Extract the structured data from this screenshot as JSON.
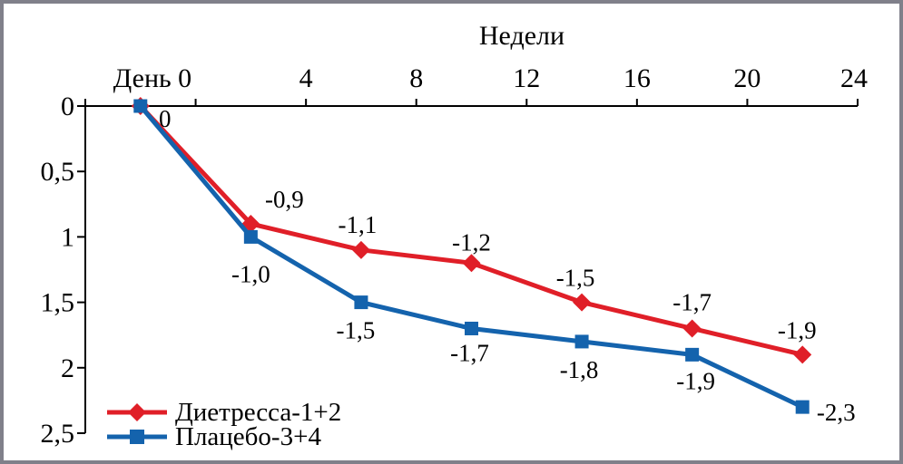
{
  "window": {
    "background_color": "#ffffff",
    "frame_border_color": "#80808a"
  },
  "chart_data": {
    "type": "line",
    "title": "Недели",
    "x_axis": {
      "day0_label": "День 0",
      "tick_labels": [
        "4",
        "8",
        "12",
        "16",
        "20",
        "24"
      ],
      "position": "top"
    },
    "y_axis": {
      "tick_labels": [
        "0",
        "0,5",
        "1",
        "1,5",
        "2",
        "2,5"
      ],
      "min": 0,
      "max": 2.5,
      "direction": "inverted-downward"
    },
    "categories": [
      "День 0",
      "4",
      "8",
      "12",
      "16",
      "20",
      "24"
    ],
    "grid": "off",
    "legend_position": "bottom-left",
    "series": [
      {
        "name": "Диетресса-1+2",
        "color": "#e01f28",
        "marker": "diamond",
        "values": [
          0,
          -0.9,
          -1.1,
          -1.2,
          -1.5,
          -1.7,
          -1.9
        ],
        "point_labels": [
          "0",
          "-0,9",
          "-1,1",
          "-1,2",
          "-1,5",
          "-1,7",
          "-1,9"
        ],
        "label_offsets": [
          [
            27,
            14
          ],
          [
            37,
            -27
          ],
          [
            -4,
            -28
          ],
          [
            0,
            -23
          ],
          [
            -7,
            -27
          ],
          [
            0,
            -29
          ],
          [
            -6,
            -27
          ]
        ]
      },
      {
        "name": "Плацебо-3+4",
        "color": "#1463ad",
        "marker": "square",
        "values": [
          0,
          -1.0,
          -1.5,
          -1.7,
          -1.8,
          -1.9,
          -2.3
        ],
        "point_labels": [
          "",
          "-1,0",
          "-1,5",
          "-1,7",
          "-1,8",
          "-1,9",
          "-2,3"
        ],
        "label_offsets": [
          [
            0,
            0
          ],
          [
            0,
            41
          ],
          [
            -6,
            31
          ],
          [
            -2,
            27
          ],
          [
            -3,
            31
          ],
          [
            4,
            29
          ],
          [
            37,
            6
          ]
        ]
      }
    ]
  }
}
